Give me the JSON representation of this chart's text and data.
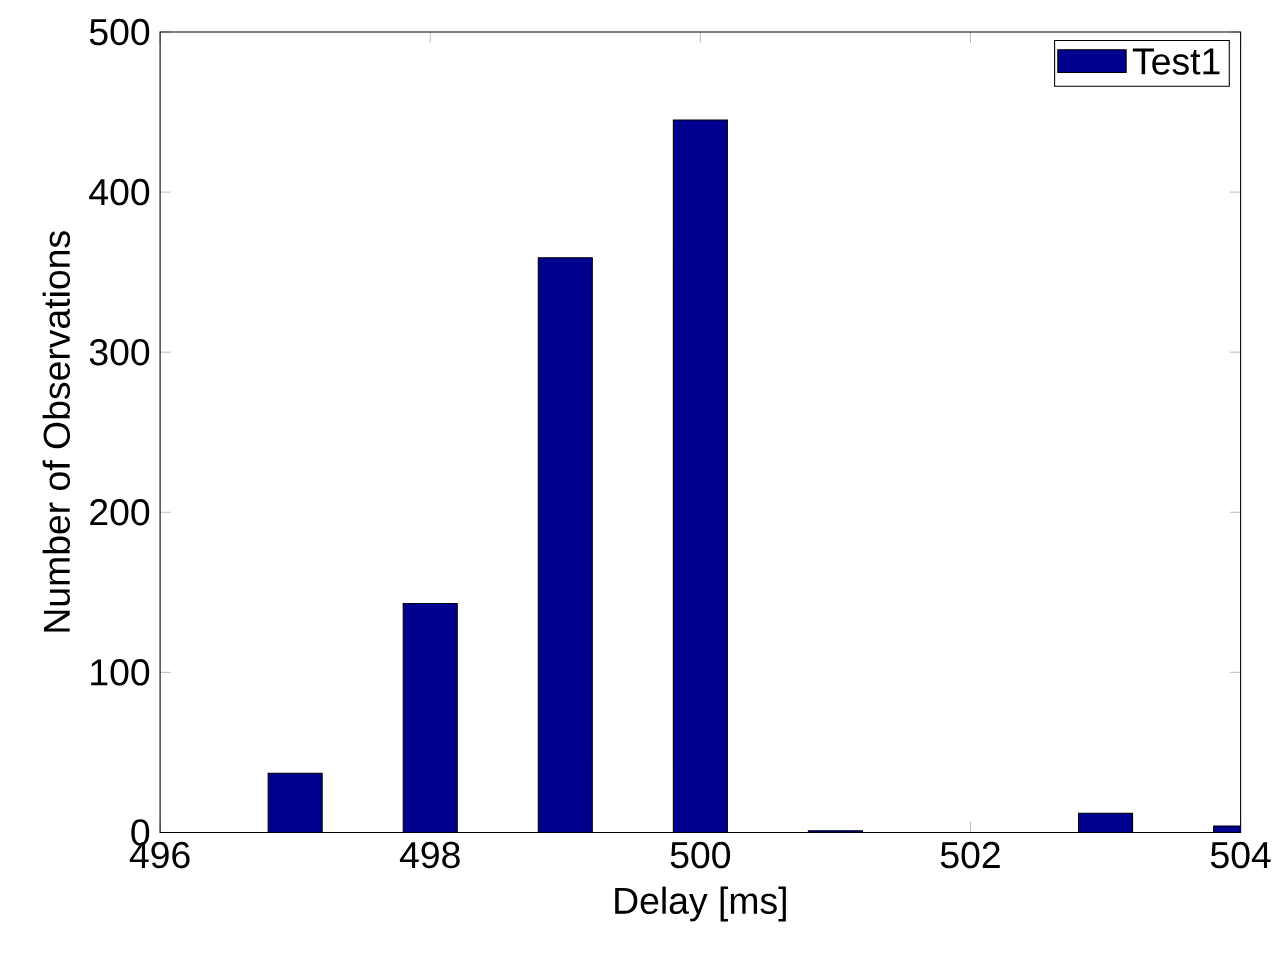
{
  "chart_data": {
    "type": "bar",
    "xlabel": "Delay [ms]",
    "ylabel": "Number of Observations",
    "x": [
      497,
      498,
      499,
      500,
      501,
      503,
      504
    ],
    "series": [
      {
        "name": "Test1",
        "color": "#00008f",
        "values": [
          37,
          143,
          359,
          445,
          1,
          12,
          4
        ]
      }
    ],
    "xlim": [
      496,
      504
    ],
    "xticks": [
      496,
      498,
      500,
      502,
      504
    ],
    "ylim": [
      0,
      500
    ],
    "yticks": [
      0,
      100,
      200,
      300,
      400,
      500
    ],
    "grid": false,
    "legend": "top right"
  }
}
